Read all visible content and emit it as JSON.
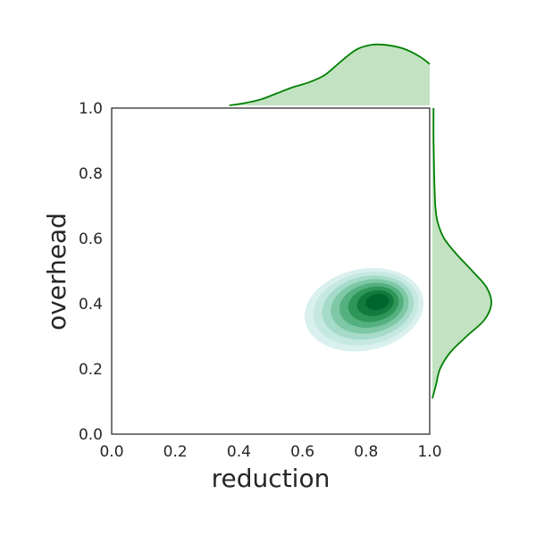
{
  "chart_data": {
    "type": "jointplot-kde",
    "xlabel": "reduction",
    "ylabel": "overhead",
    "xlim": [
      0.0,
      1.0
    ],
    "ylim": [
      0.0,
      1.0
    ],
    "xticks": [
      "0.0",
      "0.2",
      "0.4",
      "0.6",
      "0.8",
      "1.0"
    ],
    "yticks": [
      "0.0",
      "0.2",
      "0.4",
      "0.6",
      "0.8",
      "1.0"
    ],
    "grid": false,
    "colors": {
      "marginal_line": "#008000",
      "marginal_fill": "#c2e2c2",
      "contour_levels": [
        "#d9f0ee",
        "#c5e8e0",
        "#a6dbc9",
        "#7fc8a6",
        "#55b07f",
        "#2e9658",
        "#117a3c",
        "#00662e"
      ]
    },
    "joint_kde": {
      "center": {
        "x": 0.83,
        "y": 0.4
      },
      "spread": {
        "x": 0.18,
        "y": 0.1
      },
      "correlation": 0.35
    },
    "marginal_x": {
      "x": [
        0.37,
        0.42,
        0.47,
        0.52,
        0.57,
        0.62,
        0.67,
        0.72,
        0.77,
        0.82,
        0.87,
        0.92,
        0.97,
        1.0
      ],
      "density": [
        0.0,
        0.04,
        0.1,
        0.2,
        0.3,
        0.38,
        0.5,
        0.72,
        0.92,
        1.0,
        0.99,
        0.93,
        0.8,
        0.68
      ]
    },
    "marginal_y": {
      "y": [
        0.11,
        0.15,
        0.2,
        0.25,
        0.3,
        0.35,
        0.4,
        0.45,
        0.5,
        0.55,
        0.6,
        0.65,
        0.7,
        0.8,
        0.9,
        1.0
      ],
      "density": [
        0.0,
        0.06,
        0.13,
        0.3,
        0.58,
        0.88,
        1.0,
        0.92,
        0.68,
        0.42,
        0.2,
        0.09,
        0.05,
        0.03,
        0.02,
        0.02
      ]
    }
  }
}
